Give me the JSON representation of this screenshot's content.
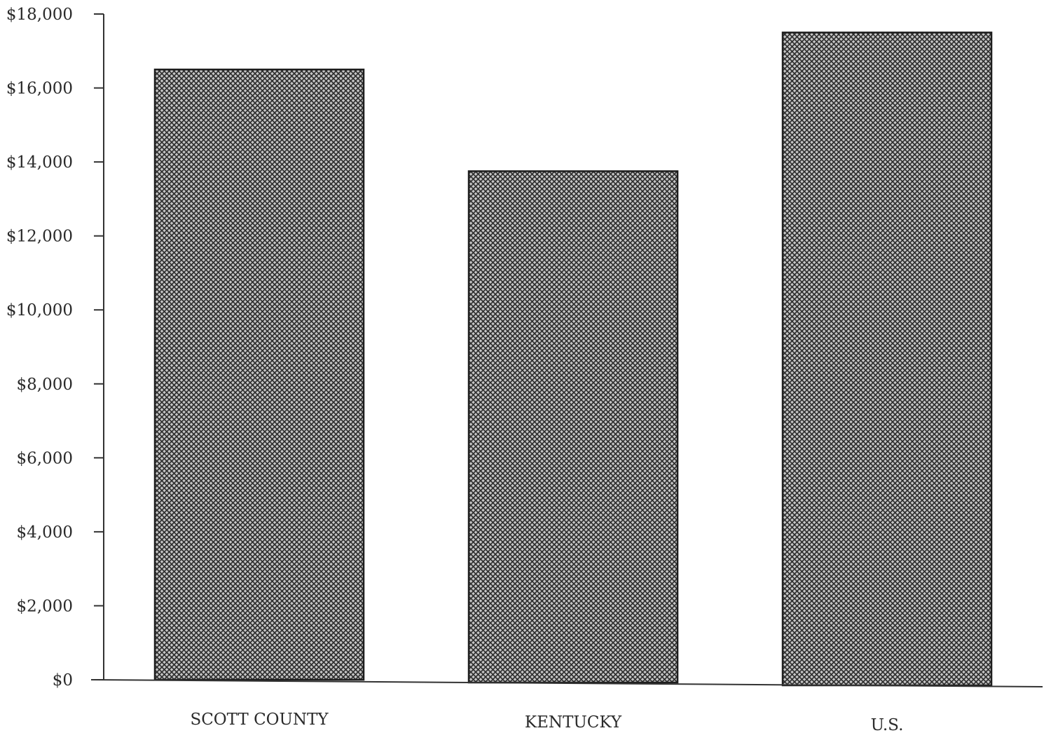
{
  "chart_data": {
    "type": "bar",
    "title": "",
    "xlabel": "",
    "ylabel": "",
    "categories": [
      "SCOTT COUNTY",
      "KENTUCKY",
      "U.S."
    ],
    "values": [
      16500,
      13750,
      17500
    ],
    "ylim": [
      0,
      18000
    ],
    "yticks": [
      0,
      2000,
      4000,
      6000,
      8000,
      10000,
      12000,
      14000,
      16000,
      18000
    ],
    "ytick_labels": [
      "$0",
      "$2,000",
      "$4,000",
      "$6,000",
      "$8,000",
      "$10,000",
      "$12,000",
      "$14,000",
      "$16,000",
      "$18,000"
    ],
    "grid": false,
    "legend": "none",
    "bar_fill": "crosshatch",
    "colors": {
      "bar_fill": "#b8b8b8",
      "hatch": "#2b2b2b",
      "outline": "#1e1e1e",
      "axis": "#333333",
      "text": "#2a2a2a"
    }
  }
}
